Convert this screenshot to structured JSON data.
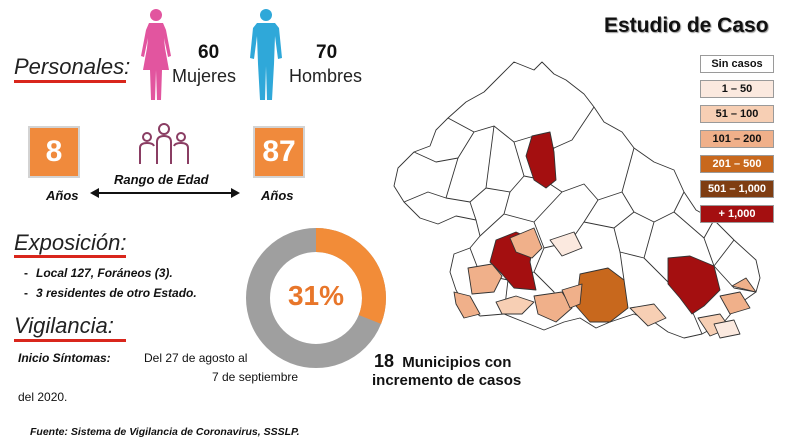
{
  "header": {
    "title": "Estudio de Caso"
  },
  "personales": {
    "heading": "Personales:",
    "women": {
      "count": "60",
      "label": "Mujeres",
      "color": "#e2559f"
    },
    "men": {
      "count": "70",
      "label": "Hombres",
      "color": "#2fa8d9"
    }
  },
  "age_range": {
    "min": "8",
    "max": "87",
    "min_unit": "Años",
    "max_unit": "Años",
    "label": "Rango de Edad",
    "box_color": "#f08a3c"
  },
  "exposicion": {
    "heading": "Exposición:",
    "items": [
      "Local 127, Foráneos (3).",
      "3 residentes de otro Estado."
    ]
  },
  "vigilancia": {
    "heading": "Vigilancia:",
    "onset_label": "Inicio Síntomas:",
    "onset_from": "Del 27 de agosto al",
    "onset_to": "7 de septiembre",
    "onset_year": "del 2020."
  },
  "donut": {
    "label": "31%",
    "value_fraction": 0.31,
    "fill_color": "#f28c38",
    "rest_color": "#9f9f9f"
  },
  "municipios": {
    "count": "18",
    "text_line1": "Municipios con",
    "text_line2": "incremento de casos"
  },
  "legend": [
    {
      "label": "Sin casos",
      "color": "#ffffff",
      "text_color": "#111111"
    },
    {
      "label": "1 – 50",
      "color": "#fbe9df",
      "text_color": "#111111"
    },
    {
      "label": "51 – 100",
      "color": "#f7cfb4",
      "text_color": "#111111"
    },
    {
      "label": "101 – 200",
      "color": "#f0b08a",
      "text_color": "#111111"
    },
    {
      "label": "201 – 500",
      "color": "#c8681d",
      "text_color": "#ffffff"
    },
    {
      "label": "501 – 1,000",
      "color": "#7f3d12",
      "text_color": "#ffffff"
    },
    {
      "label": "+ 1,000",
      "color": "#a40f10",
      "text_color": "#ffffff"
    }
  ],
  "source": "Fuente: Sistema de Vigilancia de Coronavirus, SSSLP."
}
